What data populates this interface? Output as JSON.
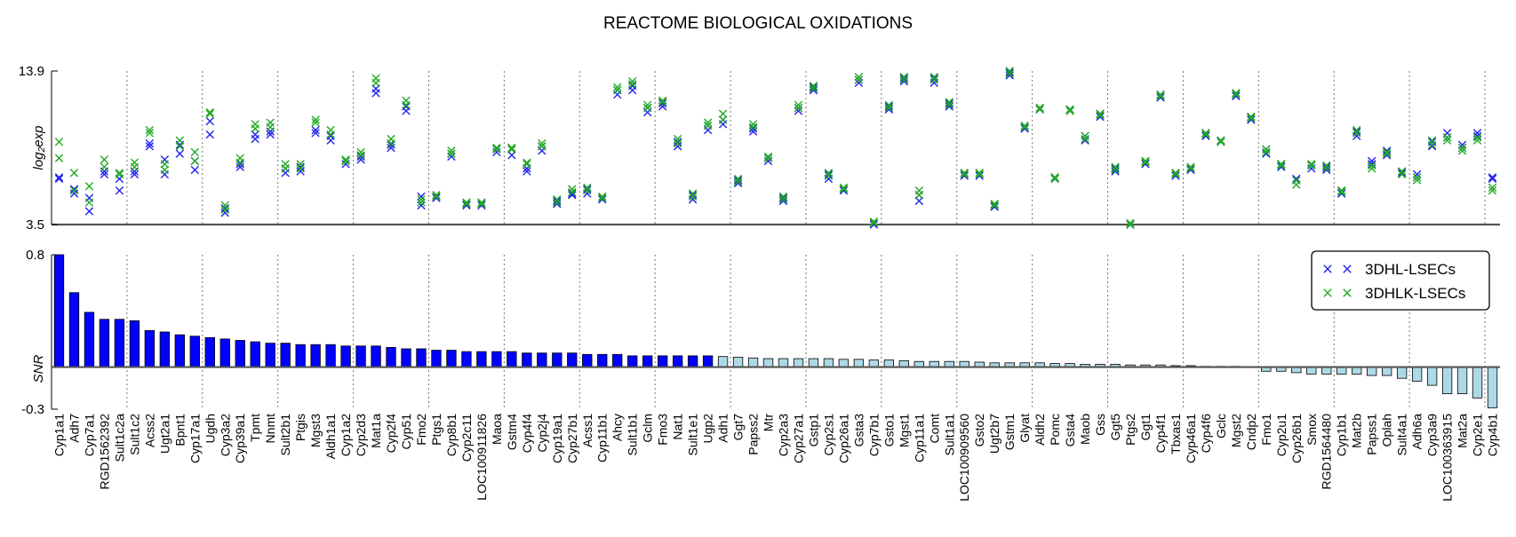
{
  "chart_data": {
    "type": "scatter+bar",
    "title": "REACTOME BIOLOGICAL OXIDATIONS",
    "categories": [
      "Cyp1a1",
      "Adh7",
      "Cyp7a1",
      "RGD1562392",
      "Sult1c2a",
      "Sult1c2",
      "Acss2",
      "Ugt2a1",
      "Bpnt1",
      "Cyp17a1",
      "Ugdh",
      "Cyp3a2",
      "Cyp39a1",
      "Tpmt",
      "Nnmt",
      "Sult2b1",
      "Ptgis",
      "Mgst3",
      "Aldh1a1",
      "Cyp1a2",
      "Cyp2d3",
      "Mat1a",
      "Cyp2f4",
      "Cyp51",
      "Fmo2",
      "Ptgs1",
      "Cyp8b1",
      "Cyp2c11",
      "LOC100911826",
      "Maoa",
      "Gstm4",
      "Cyp4f4",
      "Cyp2j4",
      "Cyp19a1",
      "Cyp27b1",
      "Acss1",
      "Cyp11b1",
      "Ahcy",
      "Sult1b1",
      "Gclm",
      "Fmo3",
      "Nat1",
      "Sult1e1",
      "Ugp2",
      "Adh1",
      "Ggt7",
      "Papss2",
      "Mtr",
      "Cyp2a3",
      "Cyp27a1",
      "Gstp1",
      "Cyp2s1",
      "Cyp26a1",
      "Gsta3",
      "Cyp7b1",
      "Gsto1",
      "Mgst1",
      "Cyp11a1",
      "Comt",
      "Sult1a1",
      "LOC100909560",
      "Gsto2",
      "Ugt2b7",
      "Gstm1",
      "Glyat",
      "Aldh2",
      "Pomc",
      "Gsta4",
      "Maob",
      "Gss",
      "Ggt5",
      "Ptgs2",
      "Ggt1",
      "Cyp4f1",
      "Tbxas1",
      "Cyp46a1",
      "Cyp4f6",
      "Gclc",
      "Mgst2",
      "Cndp2",
      "Fmo1",
      "Cyp2u1",
      "Cyp26b1",
      "Smox",
      "RGD1564480",
      "Cyp1b1",
      "Mat2b",
      "Papss1",
      "Oplah",
      "Sult4a1",
      "Adh6a",
      "Cyp3a9",
      "LOC100363915",
      "Mat2a",
      "Cyp2e1",
      "Cyp4b1"
    ],
    "scatter": {
      "ylabel": "log₂exp",
      "ylim": [
        3.5,
        13.9
      ],
      "yticks": [
        3.5,
        13.9
      ],
      "series": [
        {
          "name": "3DHL-LSECs",
          "color": "#2222ee",
          "values": [
            [
              6.7,
              6.6
            ],
            [
              5.6,
              5.9
            ],
            [
              4.4,
              5.3
            ],
            [
              7.1,
              6.9
            ],
            [
              5.8,
              6.6
            ],
            [
              6.9,
              7.1
            ],
            [
              8.8,
              9.0
            ],
            [
              7.9,
              6.9
            ],
            [
              8.3,
              8.9
            ],
            [
              7.2,
              7.8
            ],
            [
              9.6,
              10.5
            ],
            [
              4.3,
              4.6
            ],
            [
              7.4,
              7.6
            ],
            [
              9.3,
              9.6
            ],
            [
              9.8,
              9.6
            ],
            [
              7.0,
              7.3
            ],
            [
              7.1,
              7.4
            ],
            [
              9.9,
              9.7
            ],
            [
              9.2,
              9.5
            ],
            [
              7.6,
              7.8
            ],
            [
              7.9,
              8.1
            ],
            [
              12.4,
              12.7
            ],
            [
              8.7,
              8.9
            ],
            [
              11.2,
              11.5
            ],
            [
              4.8,
              5.4
            ],
            [
              5.3,
              5.4
            ],
            [
              8.1,
              8.3
            ],
            [
              4.8,
              4.9
            ],
            [
              4.8,
              4.9
            ],
            [
              8.4,
              8.6
            ],
            [
              8.2,
              8.6
            ],
            [
              7.1,
              7.3
            ],
            [
              8.5,
              8.8
            ],
            [
              4.9,
              5.1
            ],
            [
              5.5,
              5.6
            ],
            [
              5.6,
              5.9
            ],
            [
              5.2,
              5.3
            ],
            [
              12.3,
              12.6
            ],
            [
              12.6,
              12.9
            ],
            [
              11.1,
              11.4
            ],
            [
              11.5,
              11.7
            ],
            [
              8.8,
              9.1
            ],
            [
              5.2,
              5.5
            ],
            [
              9.9,
              10.2
            ],
            [
              10.3,
              10.6
            ],
            [
              6.3,
              6.5
            ],
            [
              9.8,
              10.0
            ],
            [
              7.8,
              8.0
            ],
            [
              5.1,
              5.3
            ],
            [
              11.2,
              11.4
            ],
            [
              12.6,
              12.8
            ],
            [
              6.6,
              6.9
            ],
            [
              5.8,
              5.9
            ],
            [
              13.1,
              13.3
            ],
            [
              3.5,
              3.6
            ],
            [
              11.3,
              11.5
            ],
            [
              13.2,
              13.4
            ],
            [
              5.1,
              5.5
            ],
            [
              13.1,
              13.4
            ],
            [
              11.5,
              11.7
            ],
            [
              6.8,
              7.0
            ],
            [
              6.8,
              7.0
            ],
            [
              4.7,
              4.8
            ],
            [
              13.6,
              13.8
            ],
            [
              10.0,
              10.1
            ],
            [
              11.3,
              11.4
            ],
            [
              6.6,
              6.7
            ],
            [
              11.2,
              11.3
            ],
            [
              9.2,
              9.5
            ],
            [
              10.8,
              11.0
            ],
            [
              7.1,
              7.3
            ],
            [
              3.5,
              3.5
            ],
            [
              7.6,
              7.8
            ],
            [
              12.1,
              12.3
            ],
            [
              6.8,
              7.0
            ],
            [
              7.2,
              7.3
            ],
            [
              9.5,
              9.7
            ],
            [
              9.1,
              9.2
            ],
            [
              12.2,
              12.4
            ],
            [
              10.6,
              10.8
            ],
            [
              8.3,
              8.6
            ],
            [
              7.4,
              7.6
            ],
            [
              6.5,
              6.6
            ],
            [
              7.3,
              7.5
            ],
            [
              7.2,
              7.4
            ],
            [
              5.6,
              5.8
            ],
            [
              9.5,
              9.8
            ],
            [
              7.6,
              7.8
            ],
            [
              8.2,
              8.5
            ],
            [
              7.0,
              7.1
            ],
            [
              6.7,
              6.9
            ],
            [
              8.8,
              9.1
            ],
            [
              9.4,
              9.7
            ],
            [
              8.7,
              8.9
            ],
            [
              9.5,
              9.7
            ],
            [
              6.6,
              6.7
            ]
          ]
        },
        {
          "name": "3DHLK-LSECs",
          "color": "#22aa22",
          "values": [
            [
              8.0,
              9.1
            ],
            [
              5.8,
              7.0
            ],
            [
              5.0,
              6.1
            ],
            [
              7.4,
              7.9
            ],
            [
              6.9,
              7.0
            ],
            [
              7.4,
              7.7
            ],
            [
              9.7,
              9.9
            ],
            [
              7.2,
              7.6
            ],
            [
              8.8,
              9.2
            ],
            [
              7.8,
              8.4
            ],
            [
              11.0,
              11.1
            ],
            [
              4.5,
              4.8
            ],
            [
              7.7,
              8.0
            ],
            [
              10.0,
              10.3
            ],
            [
              10.1,
              10.4
            ],
            [
              7.3,
              7.6
            ],
            [
              7.3,
              7.6
            ],
            [
              10.4,
              10.6
            ],
            [
              9.6,
              9.9
            ],
            [
              7.8,
              7.9
            ],
            [
              8.2,
              8.4
            ],
            [
              13.1,
              13.4
            ],
            [
              9.0,
              9.3
            ],
            [
              11.6,
              11.9
            ],
            [
              5.0,
              5.2
            ],
            [
              5.4,
              5.5
            ],
            [
              8.3,
              8.5
            ],
            [
              4.9,
              5.0
            ],
            [
              4.9,
              5.0
            ],
            [
              8.6,
              8.7
            ],
            [
              8.6,
              8.7
            ],
            [
              7.6,
              7.7
            ],
            [
              8.8,
              9.0
            ],
            [
              5.0,
              5.2
            ],
            [
              5.7,
              5.9
            ],
            [
              5.8,
              6.0
            ],
            [
              5.3,
              5.4
            ],
            [
              12.6,
              12.8
            ],
            [
              13.0,
              13.2
            ],
            [
              11.4,
              11.6
            ],
            [
              11.8,
              11.9
            ],
            [
              9.0,
              9.3
            ],
            [
              5.4,
              5.6
            ],
            [
              10.2,
              10.4
            ],
            [
              10.6,
              11.0
            ],
            [
              6.4,
              6.6
            ],
            [
              10.1,
              10.3
            ],
            [
              8.0,
              8.1
            ],
            [
              5.2,
              5.4
            ],
            [
              11.4,
              11.6
            ],
            [
              12.7,
              12.9
            ],
            [
              6.8,
              7.0
            ],
            [
              5.9,
              6.0
            ],
            [
              13.3,
              13.5
            ],
            [
              3.6,
              3.7
            ],
            [
              11.4,
              11.6
            ],
            [
              13.3,
              13.5
            ],
            [
              5.5,
              5.8
            ],
            [
              13.3,
              13.5
            ],
            [
              11.6,
              11.8
            ],
            [
              6.9,
              7.0
            ],
            [
              6.9,
              7.0
            ],
            [
              4.8,
              4.9
            ],
            [
              13.7,
              13.9
            ],
            [
              10.1,
              10.2
            ],
            [
              11.3,
              11.4
            ],
            [
              6.6,
              6.7
            ],
            [
              11.2,
              11.3
            ],
            [
              9.3,
              9.5
            ],
            [
              10.9,
              11.0
            ],
            [
              7.2,
              7.4
            ],
            [
              3.5,
              3.6
            ],
            [
              7.7,
              7.8
            ],
            [
              12.2,
              12.3
            ],
            [
              6.9,
              7.0
            ],
            [
              7.3,
              7.4
            ],
            [
              9.6,
              9.7
            ],
            [
              9.1,
              9.2
            ],
            [
              12.3,
              12.4
            ],
            [
              10.7,
              10.8
            ],
            [
              8.4,
              8.6
            ],
            [
              7.5,
              7.6
            ],
            [
              6.2,
              6.5
            ],
            [
              7.5,
              7.6
            ],
            [
              7.3,
              7.5
            ],
            [
              5.7,
              5.8
            ],
            [
              9.7,
              9.9
            ],
            [
              7.3,
              7.5
            ],
            [
              8.3,
              8.4
            ],
            [
              6.9,
              7.1
            ],
            [
              6.5,
              6.7
            ],
            [
              8.9,
              9.2
            ],
            [
              9.2,
              9.4
            ],
            [
              8.5,
              8.7
            ],
            [
              9.2,
              9.4
            ],
            [
              5.8,
              6.0
            ]
          ]
        }
      ]
    },
    "bar": {
      "ylabel": "SNR",
      "ylim": [
        -0.3,
        0.8
      ],
      "yticks": [
        0.8,
        -0.3
      ],
      "color_positive": "#0000ff",
      "color_low": "#add8e6",
      "dark_count": 44,
      "values": [
        0.8,
        0.53,
        0.39,
        0.34,
        0.34,
        0.33,
        0.26,
        0.25,
        0.23,
        0.22,
        0.21,
        0.2,
        0.19,
        0.18,
        0.17,
        0.17,
        0.16,
        0.16,
        0.16,
        0.15,
        0.15,
        0.15,
        0.14,
        0.13,
        0.13,
        0.12,
        0.12,
        0.11,
        0.11,
        0.11,
        0.11,
        0.1,
        0.1,
        0.1,
        0.1,
        0.09,
        0.09,
        0.09,
        0.08,
        0.08,
        0.08,
        0.08,
        0.08,
        0.08,
        0.075,
        0.07,
        0.065,
        0.06,
        0.06,
        0.06,
        0.06,
        0.06,
        0.055,
        0.055,
        0.05,
        0.05,
        0.045,
        0.04,
        0.04,
        0.04,
        0.04,
        0.035,
        0.03,
        0.03,
        0.03,
        0.03,
        0.025,
        0.025,
        0.02,
        0.02,
        0.02,
        0.015,
        0.015,
        0.015,
        0.01,
        0.01,
        0.005,
        0.005,
        0.005,
        0.0,
        -0.03,
        -0.03,
        -0.04,
        -0.05,
        -0.05,
        -0.05,
        -0.05,
        -0.06,
        -0.06,
        -0.08,
        -0.1,
        -0.13,
        -0.19,
        -0.19,
        -0.22,
        -0.29
      ]
    },
    "legend": {
      "placement": "right",
      "entries": [
        "3DHL-LSECs",
        "3DHLK-LSECs"
      ]
    },
    "separators_every": 5
  }
}
